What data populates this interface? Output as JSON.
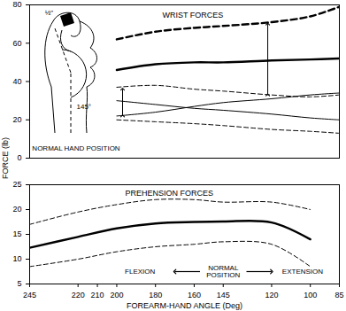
{
  "chart_data": [
    {
      "type": "line",
      "title": "WRIST FORCES",
      "ylabel": "FORCE (lb)",
      "color": "#000000",
      "x": [
        200,
        180,
        160,
        145,
        120,
        100,
        85
      ],
      "series": [
        {
          "values": [
            62,
            66,
            68,
            69,
            71,
            74,
            79
          ],
          "line_style": "bold-dashed"
        },
        {
          "values": [
            46,
            49,
            50,
            50,
            51,
            51.5,
            52
          ],
          "line_style": "bold"
        },
        {
          "values": [
            37,
            38,
            36,
            35,
            33,
            32,
            33
          ],
          "line_style": "dashed"
        },
        {
          "values": [
            30,
            28,
            26,
            25,
            23,
            21,
            20
          ],
          "line_style": "solid"
        },
        {
          "values": [
            22,
            24,
            27,
            29,
            31,
            33,
            34
          ],
          "line_style": "solid"
        },
        {
          "values": [
            20,
            19,
            18,
            17,
            15,
            14,
            13
          ],
          "line_style": "dashed"
        }
      ],
      "xlim": [
        245,
        85
      ],
      "ylim": [
        0,
        80
      ],
      "yticks": [
        0,
        20,
        40,
        60,
        80
      ],
      "tick_labels": "y",
      "arrows": [
        {
          "x": 197,
          "y1": 22,
          "y2": 36
        },
        {
          "x": 122,
          "y1": 33,
          "y2": 70
        }
      ],
      "annotations": [
        {
          "text": "½\"",
          "x": 235,
          "y": 76
        },
        {
          "text": "145°",
          "x": 217,
          "y": 27
        },
        {
          "text": "NORMAL HAND POSITION",
          "x": 221,
          "y": 5
        }
      ]
    },
    {
      "type": "line",
      "title": "PREHENSION FORCES",
      "xlabel": "FOREARM-HAND ANGLE (Deg)",
      "color": "#000000",
      "x": [
        245,
        220,
        200,
        180,
        160,
        145,
        120,
        100
      ],
      "series": [
        {
          "values": [
            12.3,
            14.5,
            16.2,
            17.2,
            17.5,
            17.6,
            17.4,
            14
          ],
          "line_style": "bold"
        },
        {
          "values": [
            17,
            19.5,
            21,
            22,
            22,
            21.5,
            21.5,
            20
          ],
          "line_style": "dashed"
        },
        {
          "values": [
            8.5,
            10,
            11.5,
            12.5,
            13,
            13.5,
            13,
            8.5
          ],
          "line_style": "dashed"
        }
      ],
      "xlim": [
        245,
        85
      ],
      "xticks": [
        245,
        220,
        210,
        200,
        180,
        160,
        145,
        120,
        100,
        85
      ],
      "ylim": [
        5,
        25
      ],
      "yticks": [
        5,
        10,
        15,
        20,
        25
      ],
      "direction_arrows": [
        {
          "x1": 157,
          "x2": 170,
          "y": 7.5
        },
        {
          "x1": 133,
          "x2": 120,
          "y": 7.5
        }
      ],
      "annotations": [
        {
          "text": "FLEXION",
          "x": 188,
          "y": 7.5
        },
        {
          "text": "NORMAL\nPOSITION",
          "x": 145,
          "y": 7.5
        },
        {
          "text": "EXTENSION",
          "x": 104,
          "y": 7.5
        }
      ]
    }
  ]
}
